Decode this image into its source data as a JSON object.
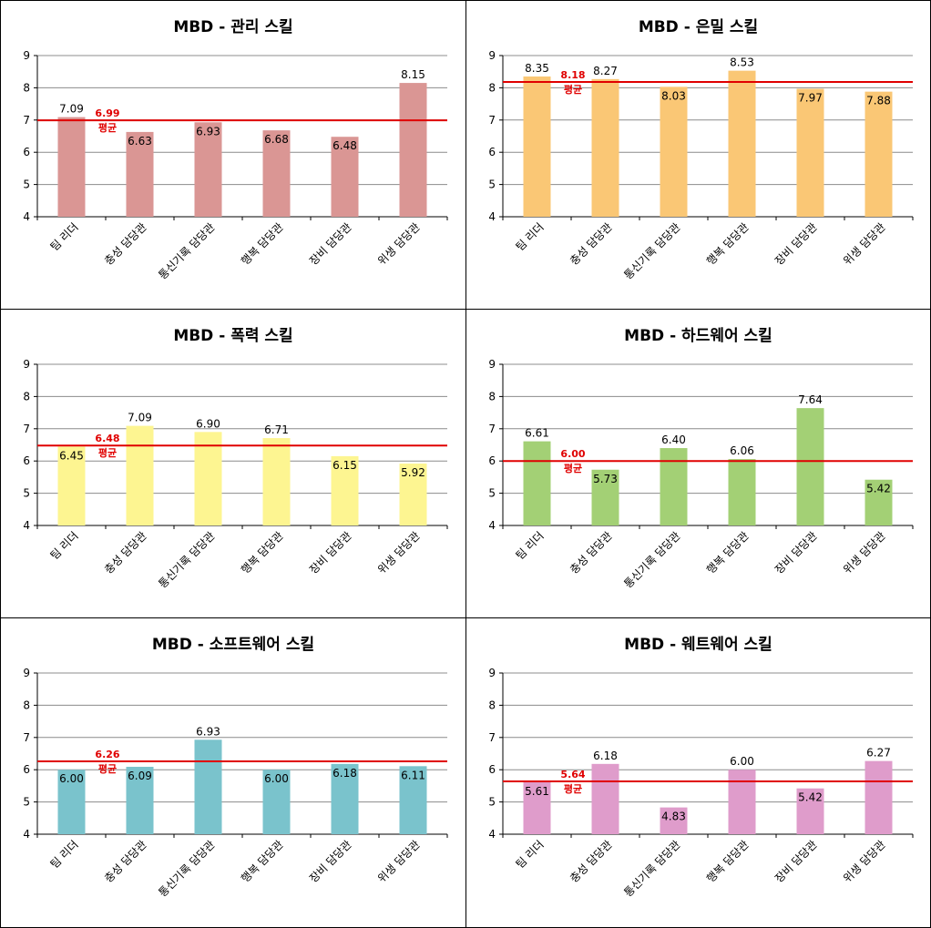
{
  "chart_data": [
    {
      "type": "bar",
      "title": "MBD - 관리 스킬",
      "categories": [
        "팀 리더",
        "충성 담당관",
        "통신기록 담당관",
        "행복 담당관",
        "장비 담당관",
        "위생 담당관"
      ],
      "values": [
        7.09,
        6.63,
        6.93,
        6.68,
        6.48,
        8.15
      ],
      "value_labels": [
        "7.09",
        "6.63",
        "6.93",
        "6.68",
        "6.48",
        "8.15"
      ],
      "average": 6.99,
      "average_label": "6.99",
      "average_text": "평균",
      "ylim": [
        4,
        9
      ],
      "yticks": [
        "4",
        "5",
        "6",
        "7",
        "8",
        "9"
      ],
      "bar_color": "#da9694",
      "line_color": "#e00000",
      "grid": true
    },
    {
      "type": "bar",
      "title": "MBD - 은밀 스킬",
      "categories": [
        "팀 리더",
        "충성 담당관",
        "통신기록 담당관",
        "행복 담당관",
        "장비 담당관",
        "위생 담당관"
      ],
      "values": [
        8.35,
        8.27,
        8.03,
        8.53,
        7.97,
        7.88
      ],
      "value_labels": [
        "8.35",
        "8.27",
        "8.03",
        "8.53",
        "7.97",
        "7.88"
      ],
      "average": 8.18,
      "average_label": "8.18",
      "average_text": "평균",
      "ylim": [
        4,
        9
      ],
      "yticks": [
        "4",
        "5",
        "6",
        "7",
        "8",
        "9"
      ],
      "bar_color": "#fac775",
      "line_color": "#e00000",
      "grid": true
    },
    {
      "type": "bar",
      "title": "MBD - 폭력 스킬",
      "categories": [
        "팀 리더",
        "충성 담당관",
        "통신기록 담당관",
        "행복 담당관",
        "장비 담당관",
        "위생 담당관"
      ],
      "values": [
        6.45,
        7.09,
        6.9,
        6.71,
        6.15,
        5.92
      ],
      "value_labels": [
        "6.45",
        "7.09",
        "6.90",
        "6.71",
        "6.15",
        "5.92"
      ],
      "average": 6.48,
      "average_label": "6.48",
      "average_text": "평균",
      "ylim": [
        4,
        9
      ],
      "yticks": [
        "4",
        "5",
        "6",
        "7",
        "8",
        "9"
      ],
      "bar_color": "#fdf591",
      "line_color": "#e00000",
      "grid": true
    },
    {
      "type": "bar",
      "title": "MBD - 하드웨어 스킬",
      "categories": [
        "팀 리더",
        "충성 담당관",
        "통신기록 담당관",
        "행복 담당관",
        "장비 담당관",
        "위생 담당관"
      ],
      "values": [
        6.61,
        5.73,
        6.4,
        6.06,
        7.64,
        5.42
      ],
      "value_labels": [
        "6.61",
        "5.73",
        "6.40",
        "6.06",
        "7.64",
        "5.42"
      ],
      "average": 6.0,
      "average_label": "6.00",
      "average_text": "평균",
      "ylim": [
        4,
        9
      ],
      "yticks": [
        "4",
        "5",
        "6",
        "7",
        "8",
        "9"
      ],
      "bar_color": "#a3d075",
      "line_color": "#e00000",
      "grid": true
    },
    {
      "type": "bar",
      "title": "MBD - 소프트웨어 스킬",
      "categories": [
        "팀 리더",
        "충성 담당관",
        "통신기록 담당관",
        "행복 담당관",
        "장비 담당관",
        "위생 담당관"
      ],
      "values": [
        6.0,
        6.09,
        6.93,
        6.0,
        6.18,
        6.11
      ],
      "value_labels": [
        "6.00",
        "6.09",
        "6.93",
        "6.00",
        "6.18",
        "6.11"
      ],
      "average": 6.26,
      "average_label": "6.26",
      "average_text": "평균",
      "ylim": [
        4,
        9
      ],
      "yticks": [
        "4",
        "5",
        "6",
        "7",
        "8",
        "9"
      ],
      "bar_color": "#7ac3cc",
      "line_color": "#e00000",
      "grid": true
    },
    {
      "type": "bar",
      "title": "MBD - 웨트웨어 스킬",
      "categories": [
        "팀 리더",
        "충성 담당관",
        "통신기록 담당관",
        "행복 담당관",
        "장비 담당관",
        "위생 담당관"
      ],
      "values": [
        5.61,
        6.18,
        4.83,
        6.0,
        5.42,
        6.27
      ],
      "value_labels": [
        "5.61",
        "6.18",
        "4.83",
        "6.00",
        "5.42",
        "6.27"
      ],
      "average": 5.64,
      "average_label": "5.64",
      "average_text": "평균",
      "ylim": [
        4,
        9
      ],
      "yticks": [
        "4",
        "5",
        "6",
        "7",
        "8",
        "9"
      ],
      "bar_color": "#df9ccb",
      "line_color": "#e00000",
      "grid": true
    }
  ]
}
